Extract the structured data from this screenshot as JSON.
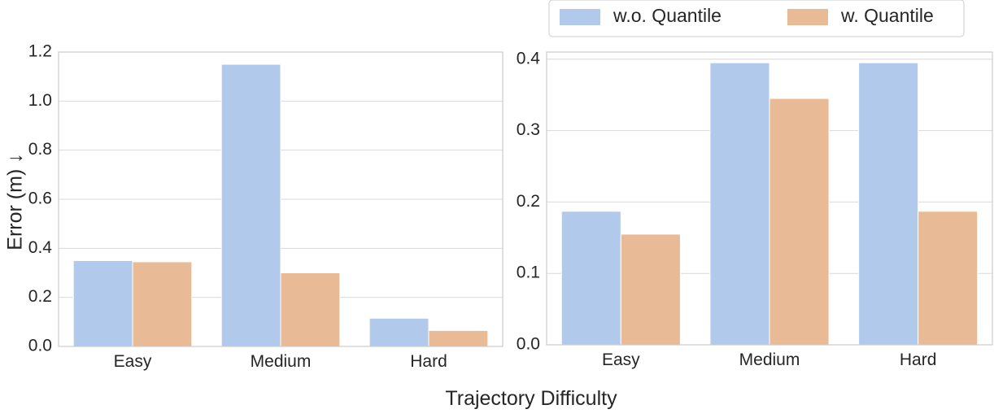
{
  "legend": {
    "placement": "top-right",
    "entries": [
      {
        "label": "w.o. Quantile",
        "color": "#b1c9ea"
      },
      {
        "label": "w. Quantile",
        "color": "#e8ba96"
      }
    ]
  },
  "shared_xlabel": "Trajectory Difficulty",
  "shared_ylabel": "Error (m) ↓",
  "colors": {
    "series_1": "#b1c9ea",
    "series_2": "#e8ba96",
    "grid": "#d9d9d9",
    "frame": "#cccccc",
    "text": "#262626"
  },
  "chart_data": [
    {
      "type": "bar",
      "categories": [
        "Easy",
        "Medium",
        "Hard"
      ],
      "series": [
        {
          "name": "w.o. Quantile",
          "values": [
            0.35,
            1.15,
            0.115
          ]
        },
        {
          "name": "w. Quantile",
          "values": [
            0.345,
            0.3,
            0.065
          ]
        }
      ],
      "title": "",
      "xlabel": "",
      "ylabel": "Error (m) ↓",
      "ylim": [
        0,
        1.2
      ],
      "yticks": [
        "0.0",
        "0.2",
        "0.4",
        "0.6",
        "0.8",
        "1.0",
        "1.2"
      ],
      "grid": "horizontal"
    },
    {
      "type": "bar",
      "categories": [
        "Easy",
        "Medium",
        "Hard"
      ],
      "series": [
        {
          "name": "w.o. Quantile",
          "values": [
            0.187,
            0.395,
            0.395
          ]
        },
        {
          "name": "w. Quantile",
          "values": [
            0.155,
            0.345,
            0.187
          ]
        }
      ],
      "title": "",
      "xlabel": "",
      "ylabel": "",
      "ylim": [
        0,
        0.41
      ],
      "yticks": [
        "0.0",
        "0.1",
        "0.2",
        "0.3",
        "0.4"
      ],
      "grid": "horizontal"
    }
  ]
}
